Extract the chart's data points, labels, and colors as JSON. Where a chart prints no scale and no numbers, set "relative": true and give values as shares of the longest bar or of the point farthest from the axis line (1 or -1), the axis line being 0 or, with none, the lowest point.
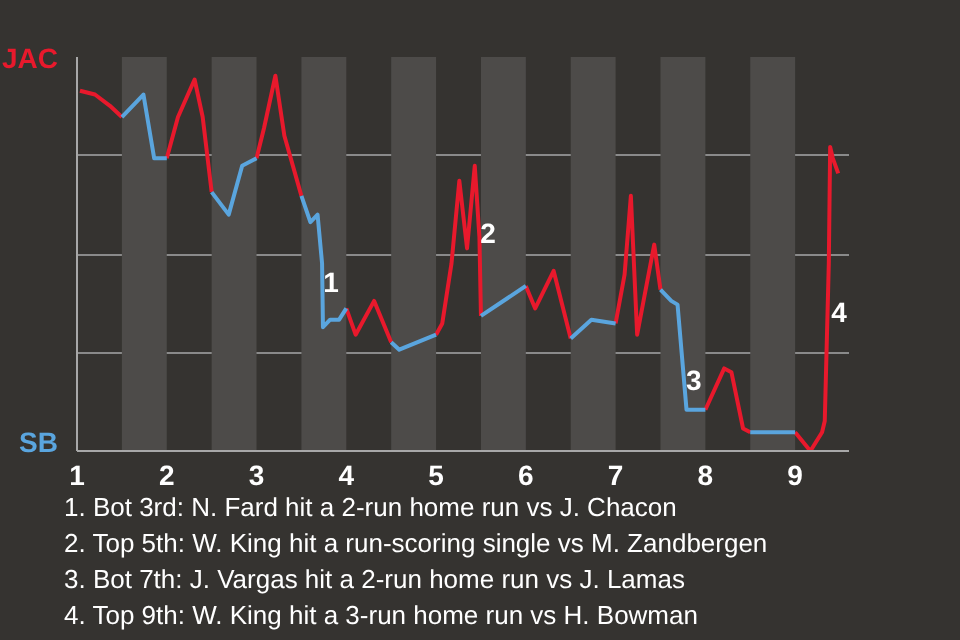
{
  "chart_data": {
    "type": "line",
    "relative": true,
    "series": [
      {
        "color": "#e8192c",
        "x": [
          1.033,
          1.2,
          1.367,
          1.5,
          null,
          2.0,
          2.125,
          2.31,
          2.4,
          2.5,
          null,
          3.0,
          3.083,
          3.21,
          3.31,
          3.5,
          null,
          4.0,
          4.104,
          4.31,
          4.5,
          null,
          5.0,
          5.069,
          5.172,
          5.259,
          5.345,
          5.431,
          5.483,
          5.5,
          null,
          6.0,
          6.104,
          6.31,
          6.5,
          null,
          7.0,
          7.1,
          7.17,
          7.24,
          7.43,
          7.5,
          null,
          8.0,
          8.21,
          8.29,
          8.42,
          8.5,
          null,
          9.0,
          9.17,
          9.3,
          9.33,
          9.375,
          9.39,
          9.42,
          9.48
        ],
        "values": [
          0.96,
          0.95,
          0.92,
          0.89,
          null,
          0.78,
          0.89,
          0.99,
          0.89,
          0.69,
          null,
          0.78,
          0.86,
          1,
          0.84,
          0.68,
          null,
          0.38,
          0.31,
          0.4,
          0.29,
          null,
          0.31,
          0.34,
          0.5,
          0.72,
          0.54,
          0.76,
          0.57,
          0.36,
          null,
          0.44,
          0.38,
          0.48,
          0.3,
          null,
          0.34,
          0.47,
          0.68,
          0.31,
          0.55,
          0.43,
          null,
          0.11,
          0.22,
          0.21,
          0.06,
          0.05,
          null,
          0.05,
          0,
          0.05,
          0.08,
          0.5,
          0.81,
          0.78,
          0.74
        ]
      },
      {
        "color": "#5aa5de",
        "x": [
          1.5,
          1.62,
          1.74,
          1.86,
          2.0,
          null,
          2.5,
          2.69,
          2.84,
          3.0,
          null,
          3.5,
          3.6,
          3.68,
          3.73,
          3.74,
          3.82,
          3.92,
          4.0,
          null,
          4.5,
          4.59,
          5.0,
          null,
          5.5,
          6.0,
          null,
          6.5,
          6.73,
          7.0,
          null,
          7.5,
          7.62,
          7.69,
          7.79,
          8.0,
          null,
          8.5,
          9.0
        ],
        "values": [
          0.89,
          0.92,
          0.95,
          0.78,
          0.78,
          null,
          0.69,
          0.63,
          0.76,
          0.78,
          null,
          0.68,
          0.61,
          0.63,
          0.5,
          0.33,
          0.35,
          0.35,
          0.38,
          null,
          0.29,
          0.27,
          0.31,
          null,
          0.36,
          0.44,
          null,
          0.3,
          0.35,
          0.34,
          null,
          0.43,
          0.4,
          0.39,
          0.11,
          0.11,
          null,
          0.05,
          0.05
        ]
      }
    ],
    "xlim": [
      1,
      9.6
    ],
    "xticks": [
      1,
      2,
      3,
      4,
      5,
      6,
      7,
      8,
      9
    ],
    "grid": "y",
    "line_style": "solid",
    "bands": [
      {
        "axis": "x",
        "from": 1.5,
        "to": 2,
        "color": "#4d4b49"
      },
      {
        "axis": "x",
        "from": 2.5,
        "to": 3,
        "color": "#4d4b49"
      },
      {
        "axis": "x",
        "from": 3.5,
        "to": 4,
        "color": "#4d4b49"
      },
      {
        "axis": "x",
        "from": 4.5,
        "to": 5,
        "color": "#4d4b49"
      },
      {
        "axis": "x",
        "from": 5.5,
        "to": 6,
        "color": "#4d4b49"
      },
      {
        "axis": "x",
        "from": 6.5,
        "to": 7,
        "color": "#4d4b49"
      },
      {
        "axis": "x",
        "from": 7.5,
        "to": 8,
        "color": "#4d4b49"
      },
      {
        "axis": "x",
        "from": 8.5,
        "to": 9,
        "color": "#4d4b49"
      }
    ],
    "annotations": [
      "JAC",
      "SB",
      {
        "text": "1",
        "x": 3.83,
        "y": 0.45
      },
      {
        "text": "2",
        "x": 5.58,
        "y": 0.58
      },
      {
        "text": "3",
        "x": 7.87,
        "y": 0.19
      },
      {
        "text": "4",
        "x": 9.49,
        "y": 0.37
      },
      "1. Bot 3rd: N. Fard hit a 2-run home run vs J. Chacon",
      "2. Top 5th: W. King hit a run-scoring single vs M. Zandbergen",
      "3. Bot 7th: J. Vargas hit a 2-run home run vs J. Lamas",
      "4. Top 9th: W. King hit a 3-run home run vs H. Bowman"
    ]
  }
}
